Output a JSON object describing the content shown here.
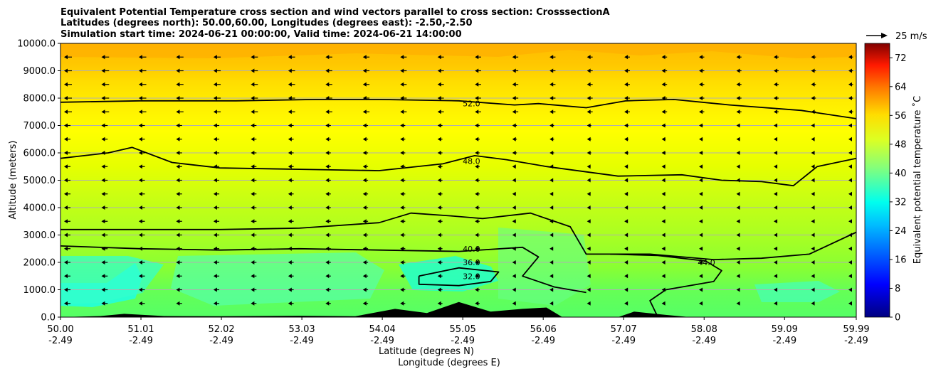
{
  "title_lines": [
    "Equivalent Potential Temperature cross section and wind vectors parallel to cross section: CrosssectionA",
    "Latitudes (degrees north): 50.00,60.00, Longitudes (degrees east): -2.50,-2.50",
    "Simulation start time: 2024-06-21 00:00:00, Valid time: 2024-06-21 14:00:00"
  ],
  "chart_data": {
    "type": "contourf",
    "title": "Equivalent Potential Temperature cross section and wind vectors parallel to cross section: CrosssectionA",
    "ylabel": "Altitude (meters)",
    "xlabel_lines": [
      "Latitude (degrees N)",
      "Longitude (degrees E)"
    ],
    "ylim": [
      0,
      10000
    ],
    "yticks": [
      "0.0",
      "1000.0",
      "2000.0",
      "3000.0",
      "4000.0",
      "5000.0",
      "6000.0",
      "7000.0",
      "8000.0",
      "9000.0",
      "10000.0"
    ],
    "xlim": [
      50.0,
      59.99
    ],
    "xticks": [
      {
        "lat": "50.00",
        "lon": "-2.49",
        "pos": 50.0
      },
      {
        "lat": "51.01",
        "lon": "-2.49",
        "pos": 51.01
      },
      {
        "lat": "52.02",
        "lon": "-2.49",
        "pos": 52.02
      },
      {
        "lat": "53.03",
        "lon": "-2.49",
        "pos": 53.03
      },
      {
        "lat": "54.04",
        "lon": "-2.49",
        "pos": 54.04
      },
      {
        "lat": "55.05",
        "lon": "-2.49",
        "pos": 55.05
      },
      {
        "lat": "56.06",
        "lon": "-2.49",
        "pos": 56.06
      },
      {
        "lat": "57.07",
        "lon": "-2.49",
        "pos": 57.07
      },
      {
        "lat": "58.08",
        "lon": "-2.49",
        "pos": 58.08
      },
      {
        "lat": "59.09",
        "lon": "-2.49",
        "pos": 59.09
      },
      {
        "lat": "59.99",
        "lon": "-2.49",
        "pos": 59.99
      }
    ],
    "grid": "horizontal",
    "colorbar": {
      "label": "Equivalent potential temperature ˚C",
      "min": 0,
      "max": 76,
      "ticks": [
        "0",
        "8",
        "16",
        "24",
        "32",
        "40",
        "48",
        "56",
        "64",
        "72"
      ]
    },
    "quiver_key": "25 m/s",
    "contours": [
      {
        "label": "52.0",
        "points": [
          [
            50.0,
            7850
          ],
          [
            51.0,
            7900
          ],
          [
            52.2,
            7900
          ],
          [
            53.2,
            7950
          ],
          [
            54.0,
            7950
          ],
          [
            55.0,
            7900
          ],
          [
            55.7,
            7750
          ],
          [
            56.0,
            7800
          ],
          [
            56.6,
            7650
          ],
          [
            57.1,
            7900
          ],
          [
            57.7,
            7950
          ],
          [
            58.4,
            7750
          ],
          [
            59.3,
            7550
          ],
          [
            59.99,
            7250
          ]
        ],
        "label_pos": [
          55.05,
          7800
        ]
      },
      {
        "label": "48.0",
        "points": [
          [
            50.0,
            5800
          ],
          [
            50.6,
            6000
          ],
          [
            50.9,
            6200
          ],
          [
            51.4,
            5650
          ],
          [
            52.0,
            5450
          ],
          [
            53.0,
            5400
          ],
          [
            54.0,
            5350
          ],
          [
            54.8,
            5600
          ],
          [
            55.2,
            5900
          ],
          [
            55.6,
            5750
          ],
          [
            56.1,
            5500
          ],
          [
            57.0,
            5150
          ],
          [
            57.8,
            5200
          ],
          [
            58.3,
            5000
          ],
          [
            58.8,
            4950
          ],
          [
            59.2,
            4800
          ],
          [
            59.5,
            5500
          ],
          [
            59.99,
            5800
          ]
        ],
        "label_pos": [
          55.05,
          5700
        ]
      },
      {
        "label": "40.0",
        "points": [
          [
            50.0,
            3200
          ],
          [
            51.0,
            3200
          ],
          [
            52.0,
            3200
          ],
          [
            53.0,
            3250
          ],
          [
            54.0,
            3450
          ],
          [
            54.4,
            3800
          ],
          [
            54.9,
            3700
          ],
          [
            55.3,
            3600
          ],
          [
            55.9,
            3800
          ],
          [
            56.4,
            3300
          ],
          [
            56.6,
            2300
          ],
          [
            57.4,
            2300
          ],
          [
            58.2,
            2100
          ],
          [
            58.8,
            2150
          ],
          [
            59.4,
            2300
          ],
          [
            59.99,
            3100
          ]
        ],
        "label_pos": [
          55.05,
          2500
        ]
      },
      {
        "label": "36.0",
        "points": [
          [
            50.0,
            2600
          ],
          [
            51.0,
            2500
          ],
          [
            52.0,
            2450
          ],
          [
            53.0,
            2500
          ],
          [
            54.0,
            2450
          ],
          [
            55.0,
            2400
          ],
          [
            55.8,
            2550
          ],
          [
            56.0,
            2200
          ],
          [
            55.8,
            1500
          ],
          [
            56.2,
            1100
          ],
          [
            56.6,
            900
          ]
        ],
        "label_pos": [
          55.05,
          2000
        ]
      },
      {
        "label": "32.0",
        "points": [
          [
            54.5,
            1500
          ],
          [
            55.0,
            1800
          ],
          [
            55.5,
            1650
          ],
          [
            55.4,
            1300
          ],
          [
            55.0,
            1150
          ],
          [
            54.5,
            1200
          ],
          [
            54.5,
            1500
          ]
        ],
        "label_pos": [
          55.05,
          1500
        ]
      },
      {
        "label": "44.0",
        "points": [
          [
            56.9,
            2300
          ],
          [
            57.5,
            2250
          ],
          [
            58.1,
            2050
          ],
          [
            58.3,
            1700
          ],
          [
            58.2,
            1300
          ],
          [
            57.6,
            1000
          ],
          [
            57.4,
            600
          ],
          [
            57.5,
            0
          ]
        ],
        "label_pos": [
          58.0,
          2000
        ]
      }
    ],
    "terrain": [
      [
        50.0,
        0
      ],
      [
        50.5,
        40
      ],
      [
        50.8,
        120
      ],
      [
        51.3,
        40
      ],
      [
        52.0,
        30
      ],
      [
        53.0,
        50
      ],
      [
        53.7,
        30
      ],
      [
        54.2,
        300
      ],
      [
        54.6,
        150
      ],
      [
        55.0,
        550
      ],
      [
        55.4,
        200
      ],
      [
        55.8,
        300
      ],
      [
        56.1,
        350
      ],
      [
        56.3,
        0
      ],
      [
        57.0,
        0
      ],
      [
        57.2,
        200
      ],
      [
        57.6,
        80
      ],
      [
        57.9,
        0
      ],
      [
        59.99,
        0
      ]
    ]
  }
}
